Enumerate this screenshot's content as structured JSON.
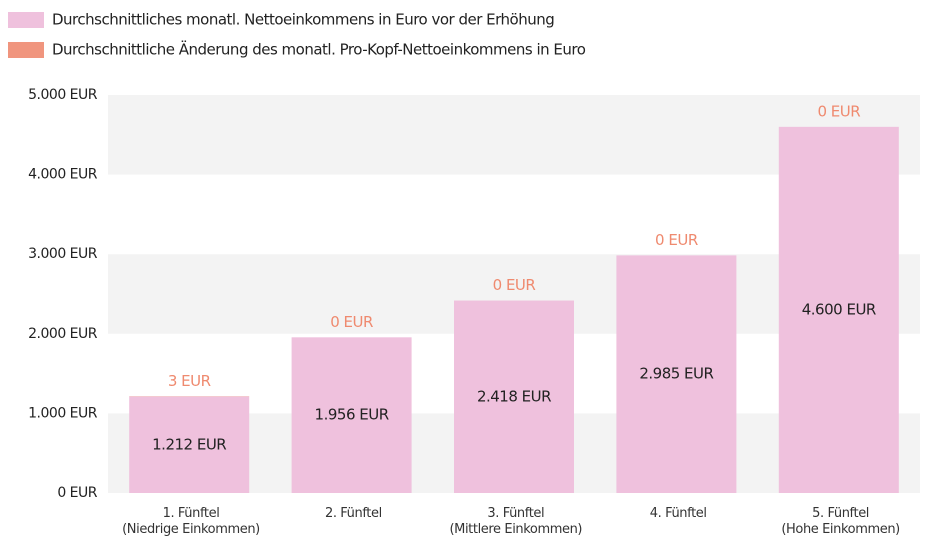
{
  "chart_data": {
    "type": "stacked_bar",
    "categories": [
      "1. Fünftel\n(Niedrige Einkommen)",
      "2. Fünftel",
      "3. Fünftel\n(Mittlere Einkommen)",
      "4. Fünftel",
      "5. Fünftel\n(Hohe Einkommen)"
    ],
    "series": [
      {
        "name": "Durchschnittliches monatl. Nettoeinkommens in Euro vor der Erhöhung",
        "color": "#efc1dd",
        "values": [
          1212,
          1956,
          2418,
          2985,
          4600
        ],
        "value_labels": [
          "1.212 EUR",
          "1.956 EUR",
          "2.418 EUR",
          "2.985 EUR",
          "4.600 EUR"
        ]
      },
      {
        "name": "Durchschnittliche Änderung des monatl. Pro-Kopf-Nettoeinkommens in Euro",
        "color": "#f0957e",
        "values": [
          3,
          0,
          0,
          0,
          0
        ],
        "value_labels": [
          "3 EUR",
          "0 EUR",
          "0 EUR",
          "0 EUR",
          "0 EUR"
        ]
      }
    ],
    "ylim": [
      0,
      5000
    ],
    "yticks": [
      {
        "value": 0,
        "label": "0 EUR"
      },
      {
        "value": 1000,
        "label": "1.000 EUR"
      },
      {
        "value": 2000,
        "label": "2.000 EUR"
      },
      {
        "value": 3000,
        "label": "3.000 EUR"
      },
      {
        "value": 4000,
        "label": "4.000 EUR"
      },
      {
        "value": 5000,
        "label": "5.000 EUR"
      }
    ],
    "legend": "top-left"
  }
}
